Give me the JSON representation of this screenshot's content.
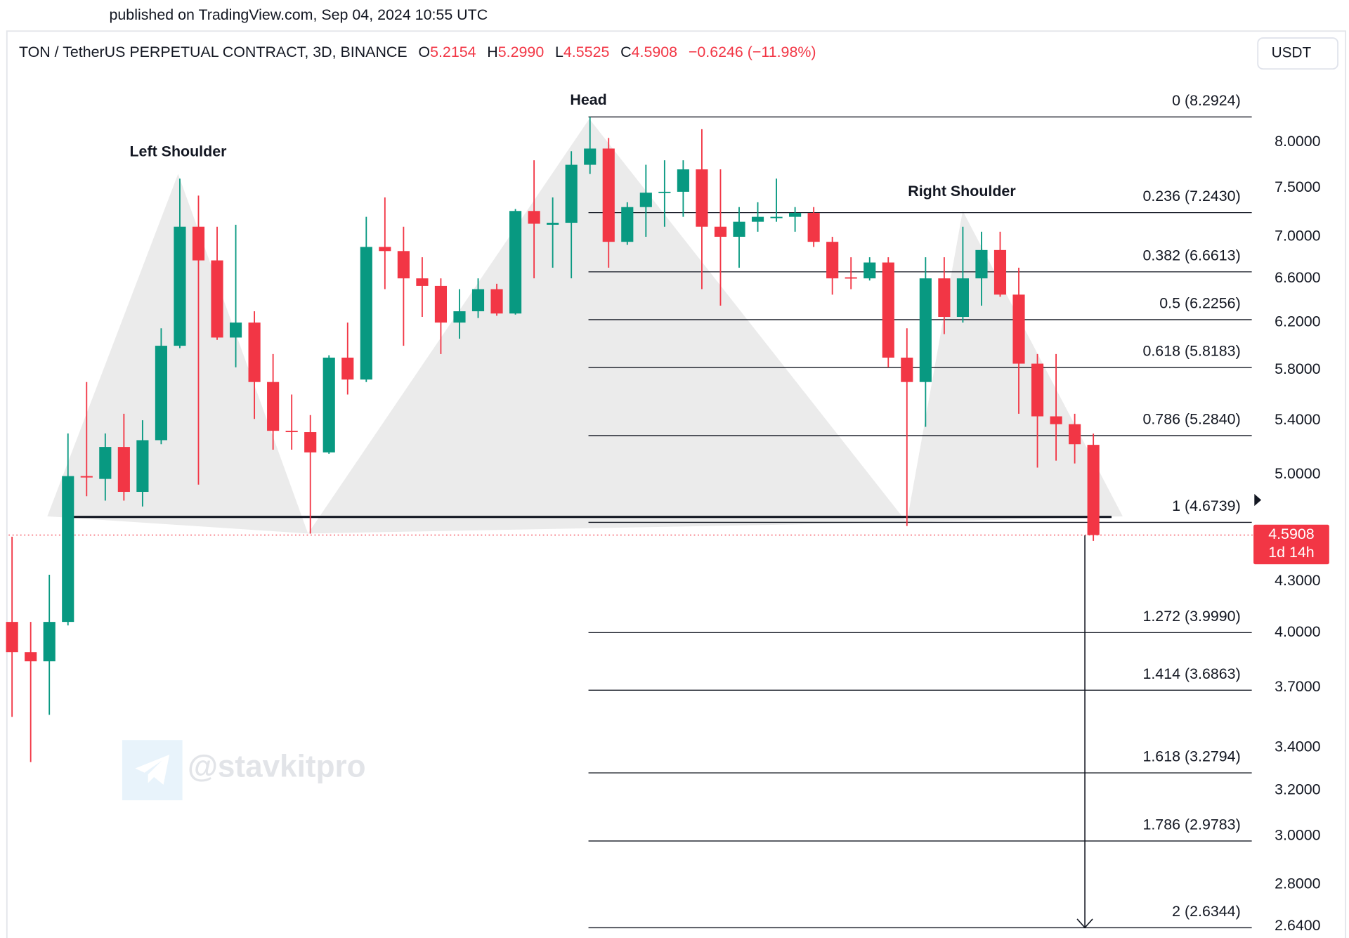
{
  "header": {
    "published": "published on TradingView.com, Sep 04, 2024 10:55 UTC"
  },
  "chart_data": {
    "type": "candlestick",
    "title": "TON / TetherUS PERPETUAL CONTRACT, 3D, BINANCE",
    "legend_values": {
      "names": [
        "O",
        "H",
        "L",
        "C"
      ],
      "values": [
        5.2154,
        5.299,
        4.5525,
        4.5908
      ],
      "value_labels": [
        "5.2154",
        "5.2990",
        "4.5525",
        "4.5908"
      ]
    },
    "change": "−0.6246 (−11.98%)",
    "currency": "USDT",
    "log_scale": true,
    "grid": false,
    "ylim": [
      2.6,
      8.8
    ],
    "yticks": [
      {
        "value": 8,
        "label": "8.0000"
      },
      {
        "value": 7.5,
        "label": "7.5000"
      },
      {
        "value": 7,
        "label": "7.0000"
      },
      {
        "value": 6.6,
        "label": "6.6000"
      },
      {
        "value": 6.2,
        "label": "6.2000"
      },
      {
        "value": 5.8,
        "label": "5.8000"
      },
      {
        "value": 5.4,
        "label": "5.4000"
      },
      {
        "value": 5,
        "label": "5.0000"
      },
      {
        "value": 4.3,
        "label": "4.3000"
      },
      {
        "value": 4,
        "label": "4.0000"
      },
      {
        "value": 3.7,
        "label": "3.7000"
      },
      {
        "value": 3.4,
        "label": "3.4000"
      },
      {
        "value": 3.2,
        "label": "3.2000"
      },
      {
        "value": 3,
        "label": "3.0000"
      },
      {
        "value": 2.8,
        "label": "2.8000"
      },
      {
        "value": 2.64,
        "label": "2.6400"
      }
    ],
    "up_color": "#089981",
    "down_color": "#f23645",
    "open": [
      4.06,
      3.89,
      3.84,
      4.06,
      4.99,
      4.97,
      5.2,
      4.88,
      5.25,
      6.0,
      7.1,
      6.77,
      6.07,
      6.2,
      5.7,
      5.32,
      5.31,
      5.16,
      5.9,
      5.72,
      6.9,
      6.86,
      6.6,
      6.53,
      6.2,
      6.3,
      6.5,
      6.28,
      7.26,
      7.12,
      7.14,
      7.75,
      7.93,
      6.95,
      7.3,
      7.45,
      7.46,
      7.7,
      7.1,
      7.0,
      7.15,
      7.19,
      7.2,
      7.24,
      6.95,
      6.61,
      6.6,
      6.75,
      5.9,
      5.7,
      6.6,
      6.25,
      6.6,
      6.87,
      6.45,
      5.85,
      5.43,
      5.37,
      5.2154
    ],
    "high": [
      4.58,
      4.06,
      4.34,
      5.3,
      5.7,
      5.3,
      5.45,
      5.4,
      6.15,
      7.6,
      7.42,
      7.1,
      7.12,
      6.3,
      5.93,
      5.6,
      5.44,
      5.92,
      6.2,
      7.2,
      7.4,
      7.1,
      6.8,
      6.6,
      6.5,
      6.6,
      6.55,
      7.28,
      7.8,
      7.4,
      7.9,
      8.2924,
      8.05,
      7.35,
      7.75,
      7.8,
      7.8,
      8.15,
      7.7,
      7.3,
      7.35,
      7.6,
      7.3,
      7.3,
      7.0,
      6.8,
      6.8,
      6.8,
      6.15,
      6.8,
      6.8,
      7.1,
      7.05,
      7.05,
      6.7,
      5.93,
      5.93,
      5.45,
      5.299
    ],
    "low": [
      3.55,
      3.33,
      3.56,
      4.04,
      4.85,
      4.82,
      4.82,
      4.78,
      5.22,
      5.98,
      4.93,
      6.05,
      5.82,
      5.41,
      5.18,
      5.18,
      4.6,
      5.15,
      5.6,
      5.7,
      6.5,
      6.0,
      6.25,
      5.93,
      6.06,
      6.24,
      6.26,
      6.27,
      6.6,
      6.7,
      6.6,
      7.65,
      6.7,
      6.92,
      7.0,
      7.1,
      7.2,
      6.5,
      6.35,
      6.7,
      7.05,
      7.15,
      7.05,
      6.9,
      6.45,
      6.5,
      6.58,
      5.82,
      4.65,
      5.35,
      6.1,
      6.2,
      6.35,
      6.43,
      5.45,
      5.05,
      5.1,
      5.08,
      4.5525
    ],
    "close": [
      3.89,
      3.84,
      4.06,
      4.99,
      4.98,
      5.2,
      4.88,
      5.25,
      6.0,
      7.1,
      6.77,
      6.07,
      6.2,
      5.7,
      5.32,
      5.31,
      5.16,
      5.9,
      5.72,
      6.9,
      6.86,
      6.6,
      6.53,
      6.2,
      6.3,
      6.5,
      6.28,
      7.26,
      7.13,
      7.14,
      7.75,
      7.93,
      6.95,
      7.3,
      7.45,
      7.46,
      7.7,
      7.1,
      7.0,
      7.15,
      7.2,
      7.2,
      7.24,
      6.95,
      6.6,
      6.6,
      6.75,
      5.9,
      5.7,
      6.6,
      6.25,
      6.6,
      6.87,
      6.45,
      5.85,
      5.43,
      5.37,
      5.22,
      4.5908
    ],
    "fib_levels": [
      {
        "value": 8.2924,
        "label": "0 (8.2924)"
      },
      {
        "value": 7.243,
        "label": "0.236 (7.2430)"
      },
      {
        "value": 6.6613,
        "label": "0.382 (6.6613)"
      },
      {
        "value": 6.2256,
        "label": "0.5 (6.2256)"
      },
      {
        "value": 5.8183,
        "label": "0.618 (5.8183)"
      },
      {
        "value": 5.284,
        "label": "0.786 (5.2840)"
      },
      {
        "value": 4.6739,
        "label": "1 (4.6739)"
      },
      {
        "value": 3.999,
        "label": "1.272 (3.9990)"
      },
      {
        "value": 3.6863,
        "label": "1.414 (3.6863)"
      },
      {
        "value": 3.2794,
        "label": "1.618 (3.2794)"
      },
      {
        "value": 2.9783,
        "label": "1.786 (2.9783)"
      },
      {
        "value": 2.6344,
        "label": "2 (2.6344)"
      }
    ],
    "neckline": 4.71,
    "last_price": 4.5908,
    "countdown": "1d 14h",
    "annotations": [
      "Left Shoulder",
      "Head",
      "Right Shoulder"
    ],
    "watermark": "@stavkitpro"
  }
}
